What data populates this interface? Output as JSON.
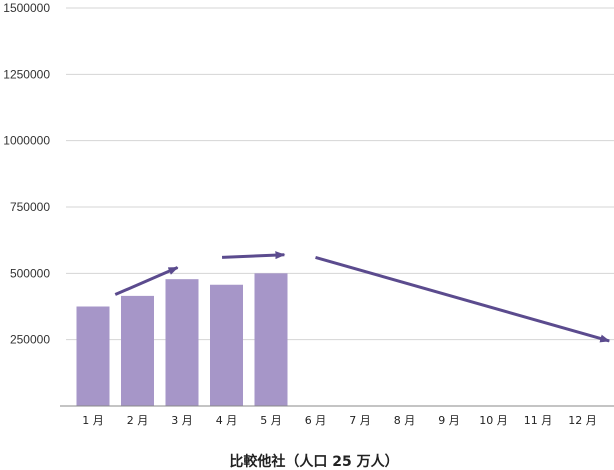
{
  "chart_data": {
    "type": "bar",
    "categories": [
      "1 月",
      "2 月",
      "3 月",
      "4 月",
      "5 月",
      "6 月",
      "7 月",
      "8 月",
      "9 月",
      "10 月",
      "11 月",
      "12 月"
    ],
    "series": [
      {
        "values": [
          375000,
          415000,
          478000,
          457000,
          500000,
          null,
          null,
          null,
          null,
          null,
          null,
          null
        ]
      }
    ],
    "ylim": [
      0,
      1500000
    ],
    "yticks": [
      250000,
      500000,
      750000,
      1000000,
      1250000,
      1500000
    ],
    "ytick_labels": [
      "250000",
      "500000",
      "750000",
      "1000000",
      "1250000",
      "1500000"
    ],
    "xlabel": "比較他社（人口 25 万人）",
    "ylabel": "",
    "title": "",
    "grid": true,
    "colors": {
      "bar": "#a696c8",
      "arrow": "#5b4b8e",
      "grid": "#d4d4d4",
      "axis": "#888888"
    },
    "annotations": [
      {
        "type": "trend-arrow",
        "from": [
          0.5,
          420000
        ],
        "to": [
          1.9,
          522000
        ]
      },
      {
        "type": "trend-arrow",
        "from": [
          2.9,
          560000
        ],
        "to": [
          4.3,
          570000
        ]
      },
      {
        "type": "trend-arrow",
        "from": [
          5.0,
          560000
        ],
        "to": [
          11.6,
          245000
        ]
      }
    ]
  }
}
